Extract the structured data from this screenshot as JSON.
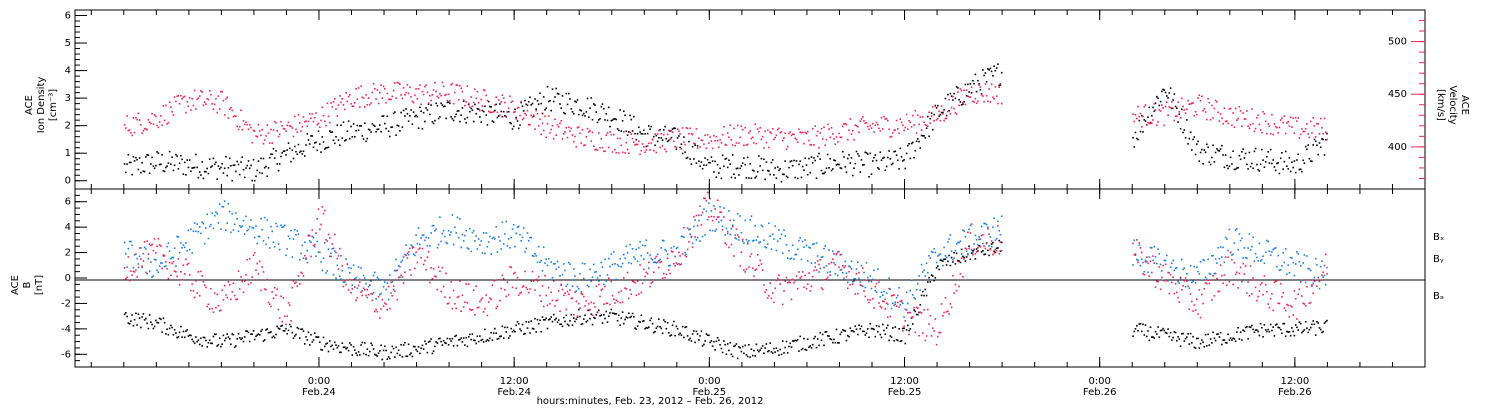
{
  "chart_data": [
    {
      "type": "scatter",
      "panel": "top",
      "ylabel_lines": [
        "ACE",
        "Ion Density",
        "[cm⁻³]"
      ],
      "y2label_lines": [
        "ACE",
        "Velocity",
        "[km/s]"
      ],
      "ylim": [
        -0.3,
        6.2
      ],
      "y2lim": [
        360,
        530
      ],
      "yticks": [
        "0",
        "1",
        "2",
        "3",
        "4",
        "5",
        "6"
      ],
      "y2ticks": [
        "400",
        "450",
        "500"
      ],
      "colors": {
        "density": "#000000",
        "velocity": "#e8285a"
      },
      "series": [
        {
          "name": "Ion Density",
          "color": "#000000",
          "x": [
            -12,
            -10,
            -8,
            -6,
            -4,
            -2,
            0,
            2,
            4,
            6,
            8,
            10,
            12,
            14,
            16,
            18,
            20,
            22,
            24,
            26,
            28,
            30,
            32,
            34,
            36,
            38,
            40,
            42,
            44,
            46,
            48,
            50,
            52,
            54,
            56,
            58,
            60,
            62
          ],
          "y": [
            0.5,
            0.7,
            0.6,
            0.5,
            0.4,
            1.0,
            1.5,
            1.8,
            2.0,
            2.3,
            2.6,
            2.5,
            2.3,
            3.0,
            2.8,
            2.4,
            1.7,
            1.5,
            0.5,
            0.6,
            0.4,
            0.5,
            0.7,
            0.6,
            0.8,
            2.5,
            3.4,
            4.0,
            null,
            null,
            null,
            1.6,
            3.4,
            1.1,
            0.9,
            0.8,
            0.6,
            1.5
          ]
        },
        {
          "name": "Velocity",
          "color": "#e8285a",
          "x": [
            -12,
            -10,
            -8,
            -6,
            -4,
            -2,
            0,
            2,
            4,
            6,
            8,
            10,
            12,
            14,
            16,
            18,
            20,
            22,
            24,
            26,
            28,
            30,
            32,
            34,
            36,
            38,
            40,
            42,
            44,
            46,
            48,
            50,
            52,
            54,
            56,
            58,
            60,
            62
          ],
          "y": [
            420,
            428,
            445,
            443,
            412,
            418,
            428,
            448,
            452,
            451,
            452,
            445,
            438,
            420,
            410,
            406,
            404,
            408,
            408,
            412,
            410,
            408,
            415,
            420,
            422,
            430,
            452,
            452,
            null,
            null,
            null,
            430,
            432,
            440,
            430,
            425,
            418,
            418
          ]
        }
      ]
    },
    {
      "type": "scatter",
      "panel": "bottom",
      "ylabel_lines": [
        "ACE",
        "B",
        "[nT]"
      ],
      "ylim": [
        -7,
        7
      ],
      "yticks": [
        "-6",
        "-4",
        "-2",
        "0",
        "2",
        "4",
        "6"
      ],
      "xlabel": "hours:minutes, Feb. 23, 2012 – Feb. 26, 2012",
      "xlim": [
        -15,
        68
      ],
      "xtick_values": [
        0,
        12,
        24,
        36,
        48,
        60
      ],
      "xtick_labels": [
        [
          "0:00",
          "Feb.24"
        ],
        [
          "12:00",
          "Feb.24"
        ],
        [
          "0:00",
          "Feb.25"
        ],
        [
          "12:00",
          "Feb.25"
        ],
        [
          "0:00",
          "Feb.26"
        ],
        [
          "12:00",
          "Feb.26"
        ]
      ],
      "legend": [
        "Bₓ",
        "Bᵧ",
        "Bₔ"
      ],
      "legend_placement": "right",
      "series": [
        {
          "name": "Bx",
          "color": "#000000",
          "x": [
            -12,
            -10,
            -8,
            -6,
            -4,
            -2,
            0,
            2,
            4,
            6,
            8,
            10,
            12,
            14,
            16,
            18,
            20,
            22,
            24,
            26,
            28,
            30,
            32,
            34,
            36,
            38,
            40,
            42,
            44,
            46,
            48,
            50,
            52,
            54,
            56,
            58,
            60,
            62
          ],
          "y": [
            -3,
            -3.5,
            -4.5,
            -5,
            -4.5,
            -4,
            -5,
            -5.5,
            -5.8,
            -5.5,
            -5,
            -4.5,
            -4,
            -3.5,
            -3,
            -3,
            -3.5,
            -4,
            -5,
            -5.8,
            -5.5,
            -5,
            -4.5,
            -4,
            -4.5,
            1,
            2,
            2.5,
            null,
            null,
            null,
            -4,
            -4.5,
            -5,
            -4.5,
            -4,
            -4,
            -3.8
          ]
        },
        {
          "name": "By",
          "color": "#1c7fe0",
          "x": [
            -12,
            -10,
            -8,
            -6,
            -4,
            -2,
            0,
            2,
            4,
            6,
            8,
            10,
            12,
            14,
            16,
            18,
            20,
            22,
            24,
            26,
            28,
            30,
            32,
            34,
            36,
            38,
            40,
            42,
            44,
            46,
            48,
            50,
            52,
            54,
            56,
            58,
            60,
            62
          ],
          "y": [
            2,
            1,
            3,
            5,
            4,
            3,
            2,
            0,
            -1,
            3,
            4,
            3,
            3.5,
            1,
            0,
            1,
            2,
            2,
            5,
            4,
            3,
            2,
            1,
            0,
            -2,
            2,
            3,
            4,
            null,
            null,
            null,
            2,
            1,
            0,
            3,
            2,
            1,
            0
          ]
        },
        {
          "name": "Bz",
          "color": "#e8285a",
          "x": [
            -12,
            -10,
            -8,
            -6,
            -4,
            -2,
            0,
            2,
            4,
            6,
            8,
            10,
            12,
            14,
            16,
            18,
            20,
            22,
            24,
            26,
            28,
            30,
            32,
            34,
            36,
            38,
            40,
            42,
            44,
            46,
            48,
            50,
            52,
            54,
            56,
            58,
            60,
            62
          ],
          "y": [
            1,
            2,
            0,
            -2,
            1,
            -3,
            5,
            -1,
            -2,
            2,
            -1,
            -2,
            0,
            -1,
            -2,
            -1,
            0,
            2,
            5.8,
            2,
            -1,
            0,
            1,
            -1,
            -3,
            -4,
            3,
            3,
            null,
            null,
            null,
            2,
            0,
            -2,
            1,
            -1,
            -2,
            1
          ]
        }
      ]
    }
  ]
}
